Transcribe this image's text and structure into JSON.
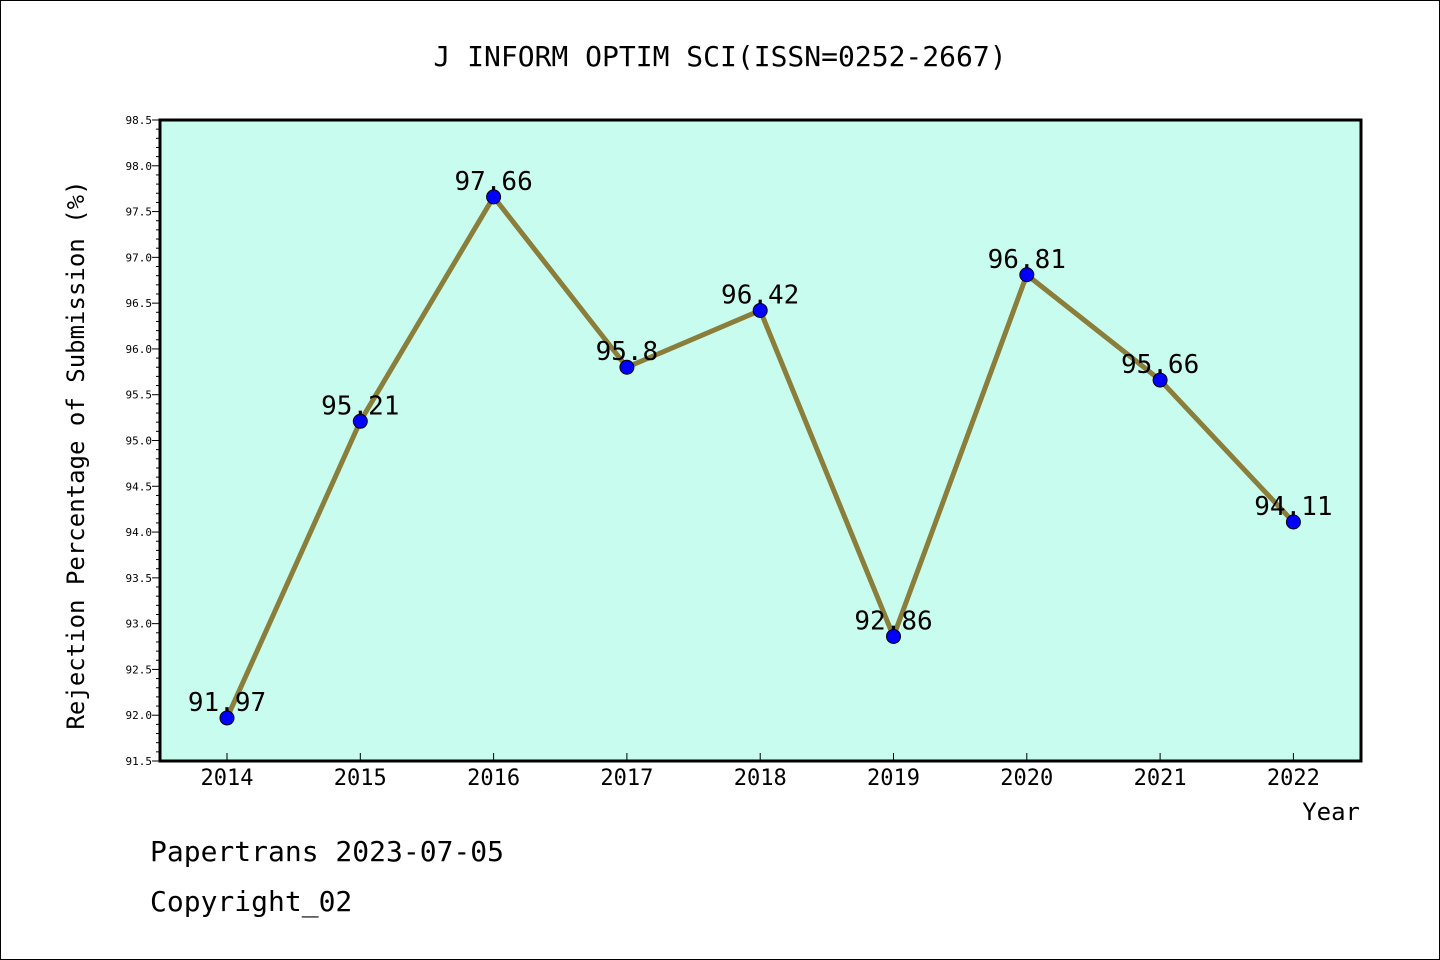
{
  "chart_data": {
    "type": "line",
    "title": "J INFORM OPTIM SCI(ISSN=0252-2667)",
    "xlabel": "Year",
    "ylabel": "Rejection Percentage of Submission (%)",
    "categories": [
      "2014",
      "2015",
      "2016",
      "2017",
      "2018",
      "2019",
      "2020",
      "2021",
      "2022"
    ],
    "values": [
      91.97,
      95.21,
      97.66,
      95.8,
      96.42,
      92.86,
      96.81,
      95.66,
      94.11
    ],
    "data_labels": [
      "91.97",
      "95.21",
      "97.66",
      "95.8",
      "96.42",
      "92.86",
      "96.81",
      "95.66",
      "94.11"
    ],
    "ylim": [
      91.5,
      98.5
    ],
    "yticks": [
      "91.5",
      "92.0",
      "92.5",
      "93.0",
      "93.5",
      "94.0",
      "94.5",
      "95.0",
      "95.5",
      "96.0",
      "96.5",
      "97.0",
      "97.5",
      "98.0",
      "98.5"
    ],
    "grid": false,
    "legend": "none",
    "colors": {
      "plot_background": "#c8fcee",
      "line": "#8b7d3a",
      "marker": "#0000ff"
    }
  },
  "footer": {
    "line1": "Papertrans 2023-07-05",
    "line2": "Copyright_02"
  }
}
